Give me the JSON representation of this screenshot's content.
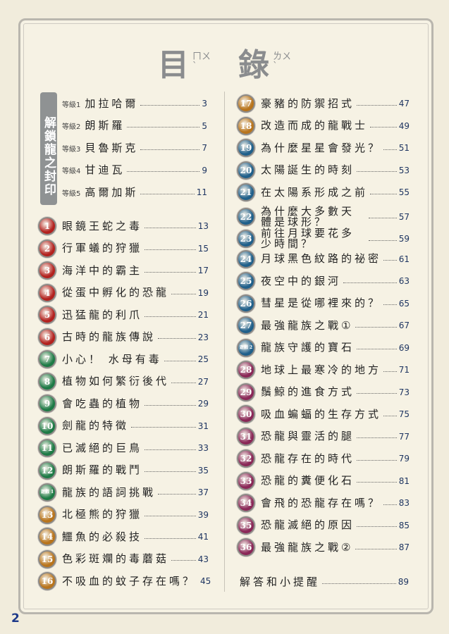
{
  "title": {
    "char1": "目",
    "zhuyin1": "ㄇㄨˋ",
    "char2": "錄",
    "zhuyin2": "ㄌㄨˋ"
  },
  "seal_label": "解鎖龍之封印",
  "colors": {
    "red": "#b3211e",
    "green": "#1d7a45",
    "orange": "#b8741c",
    "blue": "#1f5f8a",
    "purple": "#8a2757",
    "page_blue": "#1e3561"
  },
  "levels": [
    {
      "level": "等級1",
      "label": "加拉哈爾",
      "page": "3"
    },
    {
      "level": "等級2",
      "label": "朗斯羅",
      "page": "5"
    },
    {
      "level": "等級3",
      "label": "貝魯斯克",
      "page": "7"
    },
    {
      "level": "等級4",
      "label": "甘迪瓦",
      "page": "9"
    },
    {
      "level": "等級5",
      "label": "高爾加斯",
      "page": "11"
    }
  ],
  "left_items": [
    {
      "badge": "1",
      "color": "red",
      "label": "眼鏡王蛇之毒",
      "page": "13"
    },
    {
      "badge": "2",
      "color": "red",
      "label": "行軍蟻的狩獵",
      "page": "15"
    },
    {
      "badge": "3",
      "color": "red",
      "label": "海洋中的霸主",
      "page": "17"
    },
    {
      "badge": "4",
      "color": "red",
      "label": "從蛋中孵化的恐龍",
      "page": "19"
    },
    {
      "badge": "5",
      "color": "red",
      "label": "迅猛龍的利爪",
      "page": "21"
    },
    {
      "badge": "6",
      "color": "red",
      "label": "古時的龍族傳說",
      "page": "23"
    },
    {
      "badge": "7",
      "color": "green",
      "label": "小心！ 水母有毒",
      "page": "25"
    },
    {
      "badge": "8",
      "color": "green",
      "label": "植物如何繁衍後代",
      "page": "27"
    },
    {
      "badge": "9",
      "color": "green",
      "label": "會吃蟲的植物",
      "page": "29"
    },
    {
      "badge": "10",
      "color": "green",
      "label": "劍龍的特徵",
      "page": "31"
    },
    {
      "badge": "11",
      "color": "green",
      "label": "已滅絕的巨鳥",
      "page": "33"
    },
    {
      "badge": "12",
      "color": "green",
      "label": "朗斯羅的戰鬥",
      "page": "35"
    },
    {
      "badge": "遊戲 1",
      "color": "green",
      "label": "龍族的語詞挑戰",
      "page": "37"
    },
    {
      "badge": "13",
      "color": "orange",
      "label": "北極熊的狩獵",
      "page": "39"
    },
    {
      "badge": "14",
      "color": "orange",
      "label": "鱷魚的必殺技",
      "page": "41"
    },
    {
      "badge": "15",
      "color": "orange",
      "label": "色彩斑斕的毒蘑菇",
      "page": "43"
    },
    {
      "badge": "16",
      "color": "orange",
      "label": "不吸血的蚊子存在嗎？",
      "page": "45"
    }
  ],
  "right_items": [
    {
      "badge": "17",
      "color": "orange",
      "label": "豪豬的防禦招式",
      "page": "47"
    },
    {
      "badge": "18",
      "color": "orange",
      "label": "改造而成的龍戰士",
      "page": "49"
    },
    {
      "badge": "19",
      "color": "blue",
      "label": "為什麼星星會發光？",
      "page": "51"
    },
    {
      "badge": "20",
      "color": "blue",
      "label": "太陽誕生的時刻",
      "page": "53"
    },
    {
      "badge": "21",
      "color": "blue",
      "label": "在太陽系形成之前",
      "page": "55"
    },
    {
      "badge": "22",
      "color": "blue",
      "label": "為什麼大多數天體是球形？",
      "page": "57",
      "two": true
    },
    {
      "badge": "23",
      "color": "blue",
      "label": "前往月球要花多少時間？",
      "page": "59",
      "two": true
    },
    {
      "badge": "24",
      "color": "blue",
      "label": "月球黑色紋路的祕密",
      "page": "61"
    },
    {
      "badge": "25",
      "color": "blue",
      "label": "夜空中的銀河",
      "page": "63"
    },
    {
      "badge": "26",
      "color": "blue",
      "label": "彗星是從哪裡來的？",
      "page": "65"
    },
    {
      "badge": "27",
      "color": "blue",
      "label": "最強龍族之戰①",
      "page": "67"
    },
    {
      "badge": "遊戲 2",
      "color": "blue",
      "label": "龍族守護的寶石",
      "page": "69"
    },
    {
      "badge": "28",
      "color": "purple",
      "label": "地球上最寒冷的地方",
      "page": "71"
    },
    {
      "badge": "29",
      "color": "purple",
      "label": "鬚鯨的進食方式",
      "page": "73"
    },
    {
      "badge": "30",
      "color": "purple",
      "label": "吸血蝙蝠的生存方式",
      "page": "75"
    },
    {
      "badge": "31",
      "color": "purple",
      "label": "恐龍與靈活的腿",
      "page": "77"
    },
    {
      "badge": "32",
      "color": "purple",
      "label": "恐龍存在的時代",
      "page": "79"
    },
    {
      "badge": "33",
      "color": "purple",
      "label": "恐龍的糞便化石",
      "page": "81"
    },
    {
      "badge": "34",
      "color": "purple",
      "label": "會飛的恐龍存在嗎？",
      "page": "83"
    },
    {
      "badge": "35",
      "color": "purple",
      "label": "恐龍滅絕的原因",
      "page": "85"
    },
    {
      "badge": "36",
      "color": "purple",
      "label": "最強龍族之戰②",
      "page": "87"
    }
  ],
  "answers": {
    "label": "解答和小提醒",
    "page": "89"
  },
  "page_number": "2"
}
